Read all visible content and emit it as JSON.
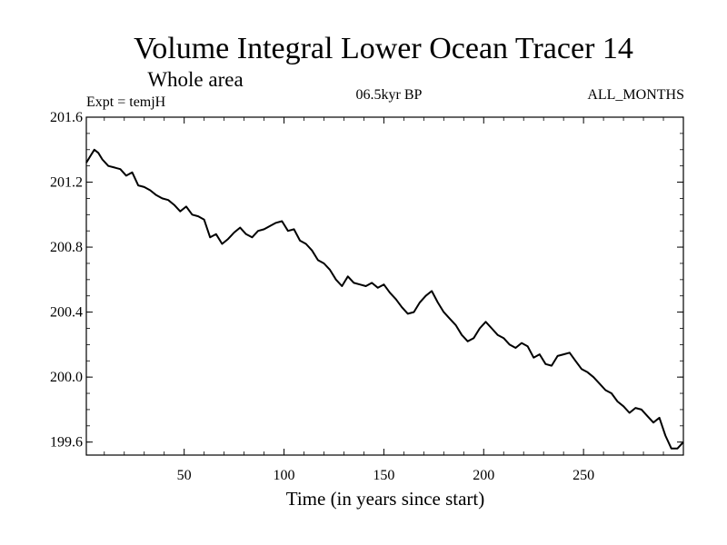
{
  "chart_data": {
    "type": "line",
    "title": "Volume Integral Lower Ocean Tracer 14",
    "subtitle": "Whole area",
    "experiment_label": "Expt = temjH",
    "period_label": "06.5kyr BP",
    "months_label": "ALL_MONTHS",
    "xlabel": "Time (in years since start)",
    "ylabel": "",
    "xlim": [
      1,
      300
    ],
    "ylim": [
      199.52,
      201.6
    ],
    "x_ticks": [
      50,
      100,
      150,
      200,
      250
    ],
    "y_ticks": [
      199.6,
      200.0,
      200.4,
      200.8,
      201.2,
      201.6
    ],
    "y_tick_labels": [
      "199.6",
      "200.0",
      "200.4",
      "200.8",
      "201.2",
      "201.6"
    ],
    "grid": false,
    "series": [
      {
        "name": "Tracer 14",
        "color": "#000000",
        "x": [
          1,
          3,
          5,
          7,
          9,
          12,
          15,
          18,
          21,
          24,
          27,
          30,
          33,
          36,
          39,
          42,
          45,
          48,
          51,
          54,
          57,
          60,
          63,
          66,
          69,
          72,
          75,
          78,
          81,
          84,
          87,
          90,
          93,
          96,
          99,
          102,
          105,
          108,
          111,
          114,
          117,
          120,
          123,
          126,
          129,
          132,
          135,
          138,
          141,
          144,
          147,
          150,
          153,
          156,
          159,
          162,
          165,
          168,
          171,
          174,
          177,
          180,
          183,
          186,
          189,
          192,
          195,
          198,
          201,
          204,
          207,
          210,
          213,
          216,
          219,
          222,
          225,
          228,
          231,
          234,
          237,
          240,
          243,
          246,
          249,
          252,
          255,
          258,
          261,
          264,
          267,
          270,
          273,
          276,
          279,
          282,
          285,
          288,
          291,
          294,
          297,
          300
        ],
        "values": [
          201.32,
          201.36,
          201.4,
          201.38,
          201.34,
          201.3,
          201.29,
          201.28,
          201.24,
          201.26,
          201.18,
          201.17,
          201.15,
          201.12,
          201.1,
          201.09,
          201.06,
          201.02,
          201.05,
          201.0,
          200.99,
          200.97,
          200.86,
          200.88,
          200.82,
          200.85,
          200.89,
          200.92,
          200.88,
          200.86,
          200.9,
          200.91,
          200.93,
          200.95,
          200.96,
          200.9,
          200.91,
          200.84,
          200.82,
          200.78,
          200.72,
          200.7,
          200.66,
          200.6,
          200.56,
          200.62,
          200.58,
          200.57,
          200.56,
          200.58,
          200.55,
          200.57,
          200.52,
          200.48,
          200.43,
          200.39,
          200.4,
          200.46,
          200.5,
          200.53,
          200.46,
          200.4,
          200.36,
          200.32,
          200.26,
          200.22,
          200.24,
          200.3,
          200.34,
          200.3,
          200.26,
          200.24,
          200.2,
          200.18,
          200.21,
          200.19,
          200.12,
          200.14,
          200.08,
          200.07,
          200.13,
          200.14,
          200.15,
          200.1,
          200.05,
          200.03,
          200.0,
          199.96,
          199.92,
          199.9,
          199.85,
          199.82,
          199.78,
          199.81,
          199.8,
          199.76,
          199.72,
          199.75,
          199.64,
          199.56,
          199.56,
          199.6
        ]
      }
    ]
  }
}
